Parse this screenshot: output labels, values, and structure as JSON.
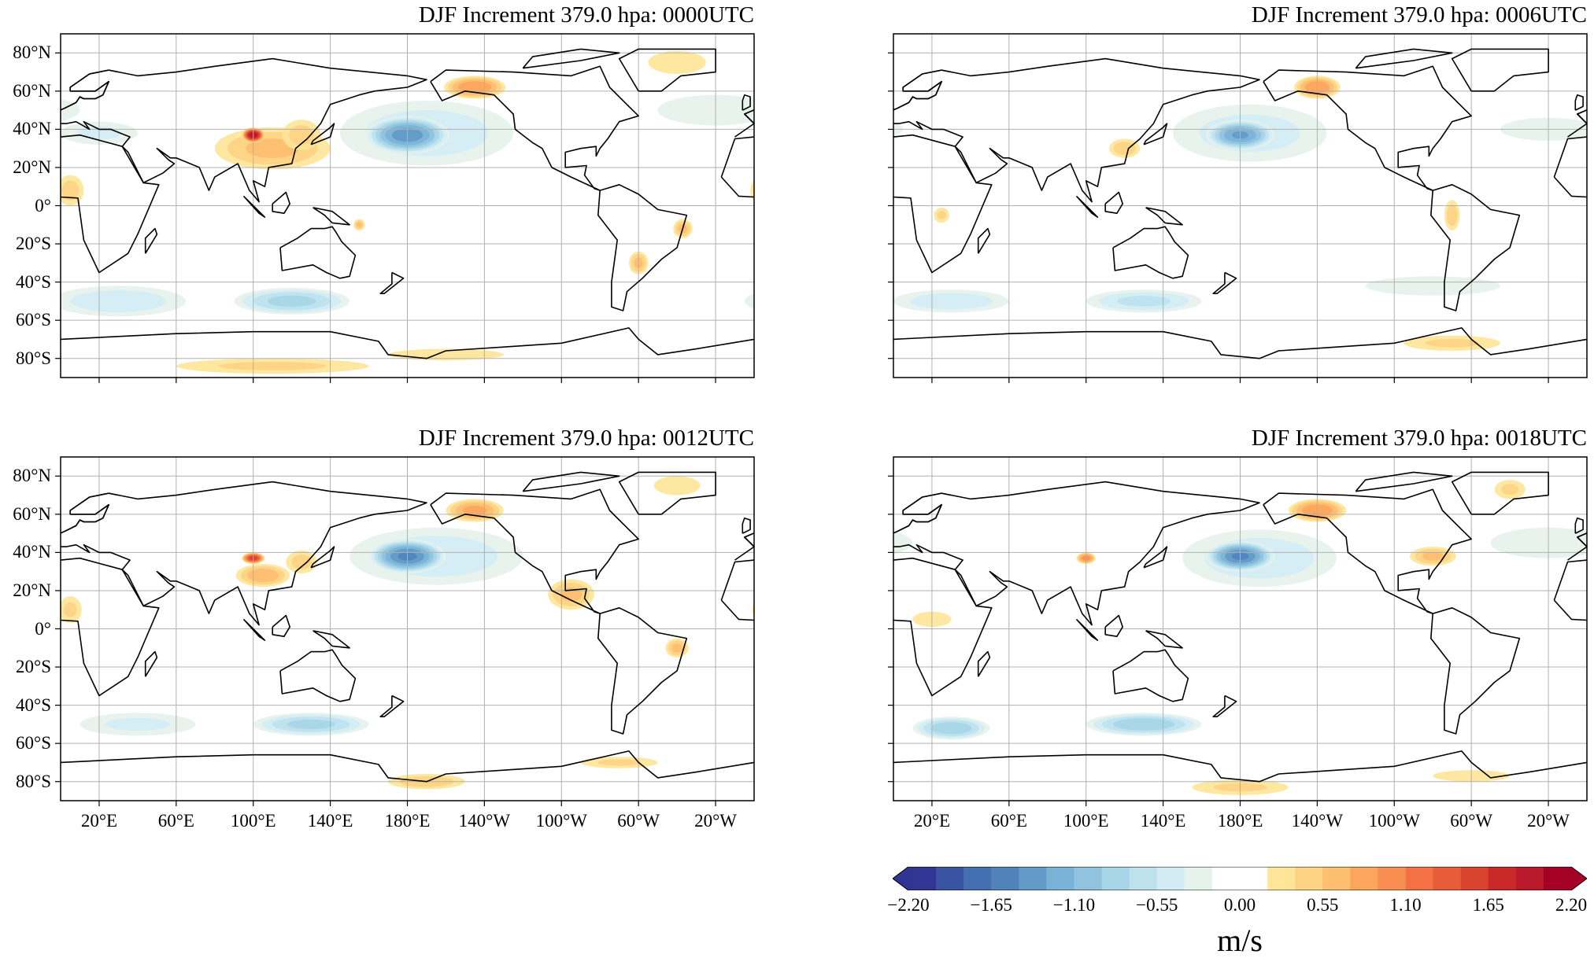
{
  "chart_data": [
    {
      "type": "contour-map",
      "title": "DJF Increment 379.0 hpa:  0000UTC",
      "features": [
        {
          "lon": 190,
          "lat": 38,
          "rx": 45,
          "ry": 17,
          "value": -0.5
        },
        {
          "lon": 180,
          "lat": 37,
          "rx": 22,
          "ry": 10,
          "value": -1.4
        },
        {
          "lon": 110,
          "lat": 30,
          "rx": 30,
          "ry": 11,
          "value": 0.6
        },
        {
          "lon": 125,
          "lat": 37,
          "rx": 10,
          "ry": 8,
          "value": 0.45
        },
        {
          "lon": 100,
          "lat": 37,
          "rx": 6,
          "ry": 4,
          "value": 2.0
        },
        {
          "lon": 215,
          "lat": 62,
          "rx": 16,
          "ry": 6,
          "value": 0.9
        },
        {
          "lon": 30,
          "lat": -50,
          "rx": 35,
          "ry": 8,
          "value": -0.5
        },
        {
          "lon": 120,
          "lat": -50,
          "rx": 30,
          "ry": 7,
          "value": -0.8
        },
        {
          "lon": 110,
          "lat": -84,
          "rx": 50,
          "ry": 4,
          "value": 0.4
        },
        {
          "lon": 200,
          "lat": -78,
          "rx": 30,
          "ry": 3,
          "value": 0.35
        },
        {
          "lon": 320,
          "lat": 75,
          "rx": 15,
          "ry": 6,
          "value": 0.3
        },
        {
          "lon": 5,
          "lat": 8,
          "rx": 7,
          "ry": 8,
          "value": 0.45
        },
        {
          "lon": 300,
          "lat": -30,
          "rx": 5,
          "ry": 6,
          "value": 0.6
        },
        {
          "lon": 323,
          "lat": -12,
          "rx": 5,
          "ry": 5,
          "value": 0.6
        },
        {
          "lon": 340,
          "lat": 50,
          "rx": 30,
          "ry": 8,
          "value": -0.3
        },
        {
          "lon": 20,
          "lat": 38,
          "rx": 20,
          "ry": 6,
          "value": -0.4
        },
        {
          "lon": 155,
          "lat": -10,
          "rx": 3,
          "ry": 3,
          "value": 0.6
        }
      ]
    },
    {
      "type": "contour-map",
      "title": "DJF Increment 379.0 hpa:  0006UTC",
      "features": [
        {
          "lon": 185,
          "lat": 38,
          "rx": 40,
          "ry": 15,
          "value": -0.45
        },
        {
          "lon": 180,
          "lat": 37,
          "rx": 18,
          "ry": 8,
          "value": -1.3
        },
        {
          "lon": 220,
          "lat": 62,
          "rx": 12,
          "ry": 6,
          "value": 0.9
        },
        {
          "lon": 120,
          "lat": 30,
          "rx": 8,
          "ry": 5,
          "value": 0.5
        },
        {
          "lon": 30,
          "lat": -50,
          "rx": 30,
          "ry": 6,
          "value": -0.5
        },
        {
          "lon": 130,
          "lat": -50,
          "rx": 30,
          "ry": 6,
          "value": -0.6
        },
        {
          "lon": 290,
          "lat": -72,
          "rx": 25,
          "ry": 4,
          "value": 0.4
        },
        {
          "lon": 290,
          "lat": -5,
          "rx": 4,
          "ry": 8,
          "value": 0.5
        },
        {
          "lon": 340,
          "lat": 40,
          "rx": 25,
          "ry": 6,
          "value": -0.25
        },
        {
          "lon": 280,
          "lat": -42,
          "rx": 35,
          "ry": 5,
          "value": -0.25
        },
        {
          "lon": 25,
          "lat": -5,
          "rx": 4,
          "ry": 4,
          "value": 0.4
        }
      ]
    },
    {
      "type": "contour-map",
      "title": "DJF Increment 379.0 hpa:  0012UTC",
      "features": [
        {
          "lon": 195,
          "lat": 38,
          "rx": 45,
          "ry": 15,
          "value": -0.5
        },
        {
          "lon": 180,
          "lat": 38,
          "rx": 20,
          "ry": 9,
          "value": -1.5
        },
        {
          "lon": 105,
          "lat": 28,
          "rx": 14,
          "ry": 6,
          "value": 0.7
        },
        {
          "lon": 125,
          "lat": 35,
          "rx": 8,
          "ry": 6,
          "value": 0.45
        },
        {
          "lon": 100,
          "lat": 37,
          "rx": 6,
          "ry": 3,
          "value": 1.6
        },
        {
          "lon": 215,
          "lat": 62,
          "rx": 15,
          "ry": 6,
          "value": 0.8
        },
        {
          "lon": 265,
          "lat": 18,
          "rx": 12,
          "ry": 8,
          "value": 0.6
        },
        {
          "lon": 130,
          "lat": -50,
          "rx": 30,
          "ry": 6,
          "value": -0.8
        },
        {
          "lon": 40,
          "lat": -50,
          "rx": 30,
          "ry": 6,
          "value": -0.4
        },
        {
          "lon": 190,
          "lat": -80,
          "rx": 20,
          "ry": 4,
          "value": 0.5
        },
        {
          "lon": 290,
          "lat": -70,
          "rx": 20,
          "ry": 3,
          "value": 0.4
        },
        {
          "lon": 320,
          "lat": -10,
          "rx": 6,
          "ry": 5,
          "value": 0.6
        },
        {
          "lon": 320,
          "lat": 75,
          "rx": 12,
          "ry": 5,
          "value": 0.35
        },
        {
          "lon": 5,
          "lat": 10,
          "rx": 6,
          "ry": 7,
          "value": 0.4
        }
      ]
    },
    {
      "type": "contour-map",
      "title": "DJF Increment 379.0 hpa:  0018UTC",
      "features": [
        {
          "lon": 190,
          "lat": 37,
          "rx": 40,
          "ry": 15,
          "value": -0.5
        },
        {
          "lon": 180,
          "lat": 38,
          "rx": 18,
          "ry": 8,
          "value": -1.5
        },
        {
          "lon": 220,
          "lat": 62,
          "rx": 15,
          "ry": 6,
          "value": 0.9
        },
        {
          "lon": 100,
          "lat": 37,
          "rx": 5,
          "ry": 3,
          "value": 1.0
        },
        {
          "lon": 280,
          "lat": 38,
          "rx": 12,
          "ry": 5,
          "value": 0.6
        },
        {
          "lon": 30,
          "lat": -52,
          "rx": 20,
          "ry": 6,
          "value": -0.9
        },
        {
          "lon": 130,
          "lat": -50,
          "rx": 30,
          "ry": 6,
          "value": -0.9
        },
        {
          "lon": 180,
          "lat": -83,
          "rx": 25,
          "ry": 4,
          "value": 0.4
        },
        {
          "lon": 300,
          "lat": -77,
          "rx": 20,
          "ry": 3,
          "value": 0.3
        },
        {
          "lon": 320,
          "lat": 73,
          "rx": 8,
          "ry": 5,
          "value": 0.4
        },
        {
          "lon": 20,
          "lat": 5,
          "rx": 10,
          "ry": 4,
          "value": 0.3
        },
        {
          "lon": 340,
          "lat": 45,
          "rx": 30,
          "ry": 8,
          "value": -0.3
        }
      ]
    }
  ],
  "axes": {
    "lon_ticks": [
      20,
      60,
      100,
      140,
      180,
      220,
      260,
      300,
      340
    ],
    "lon_labels": [
      "20°E",
      "60°E",
      "100°E",
      "140°E",
      "180°E",
      "140°W",
      "100°W",
      "60°W",
      "20°W"
    ],
    "lat_ticks": [
      80,
      60,
      40,
      20,
      0,
      -20,
      -40,
      -60,
      -80
    ],
    "lat_labels": [
      "80°N",
      "60°N",
      "40°N",
      "20°N",
      "0°",
      "20°S",
      "40°S",
      "60°S",
      "80°S"
    ],
    "xlim": [
      0,
      360
    ],
    "ylim": [
      -90,
      90
    ]
  },
  "colorbar": {
    "label": "m/s",
    "range": [
      -2.2,
      2.2
    ],
    "ticks": [
      -2.2,
      -1.65,
      -1.1,
      -0.55,
      0,
      0.55,
      1.1,
      1.65,
      2.2
    ],
    "tick_labels": [
      "−2.20",
      "−1.65",
      "−1.10",
      "−0.55",
      "0.00",
      "0.55",
      "1.10",
      "1.65",
      "2.20"
    ],
    "colors": [
      "#313695",
      "#3a54a4",
      "#4470b1",
      "#5183bb",
      "#649ac7",
      "#79b2d6",
      "#91c3df",
      "#a6d5e7",
      "#bde2ee",
      "#d3ecf4",
      "#e6f2ec",
      "#ffffff",
      "#ffffff",
      "#fee597",
      "#fed384",
      "#fdbe70",
      "#fca55d",
      "#f98e52",
      "#f47146",
      "#e85b3b",
      "#d9432f",
      "#c92a29",
      "#b81a2b",
      "#a50026"
    ],
    "extend_colors": [
      "#2f3590",
      "#a50026"
    ]
  }
}
